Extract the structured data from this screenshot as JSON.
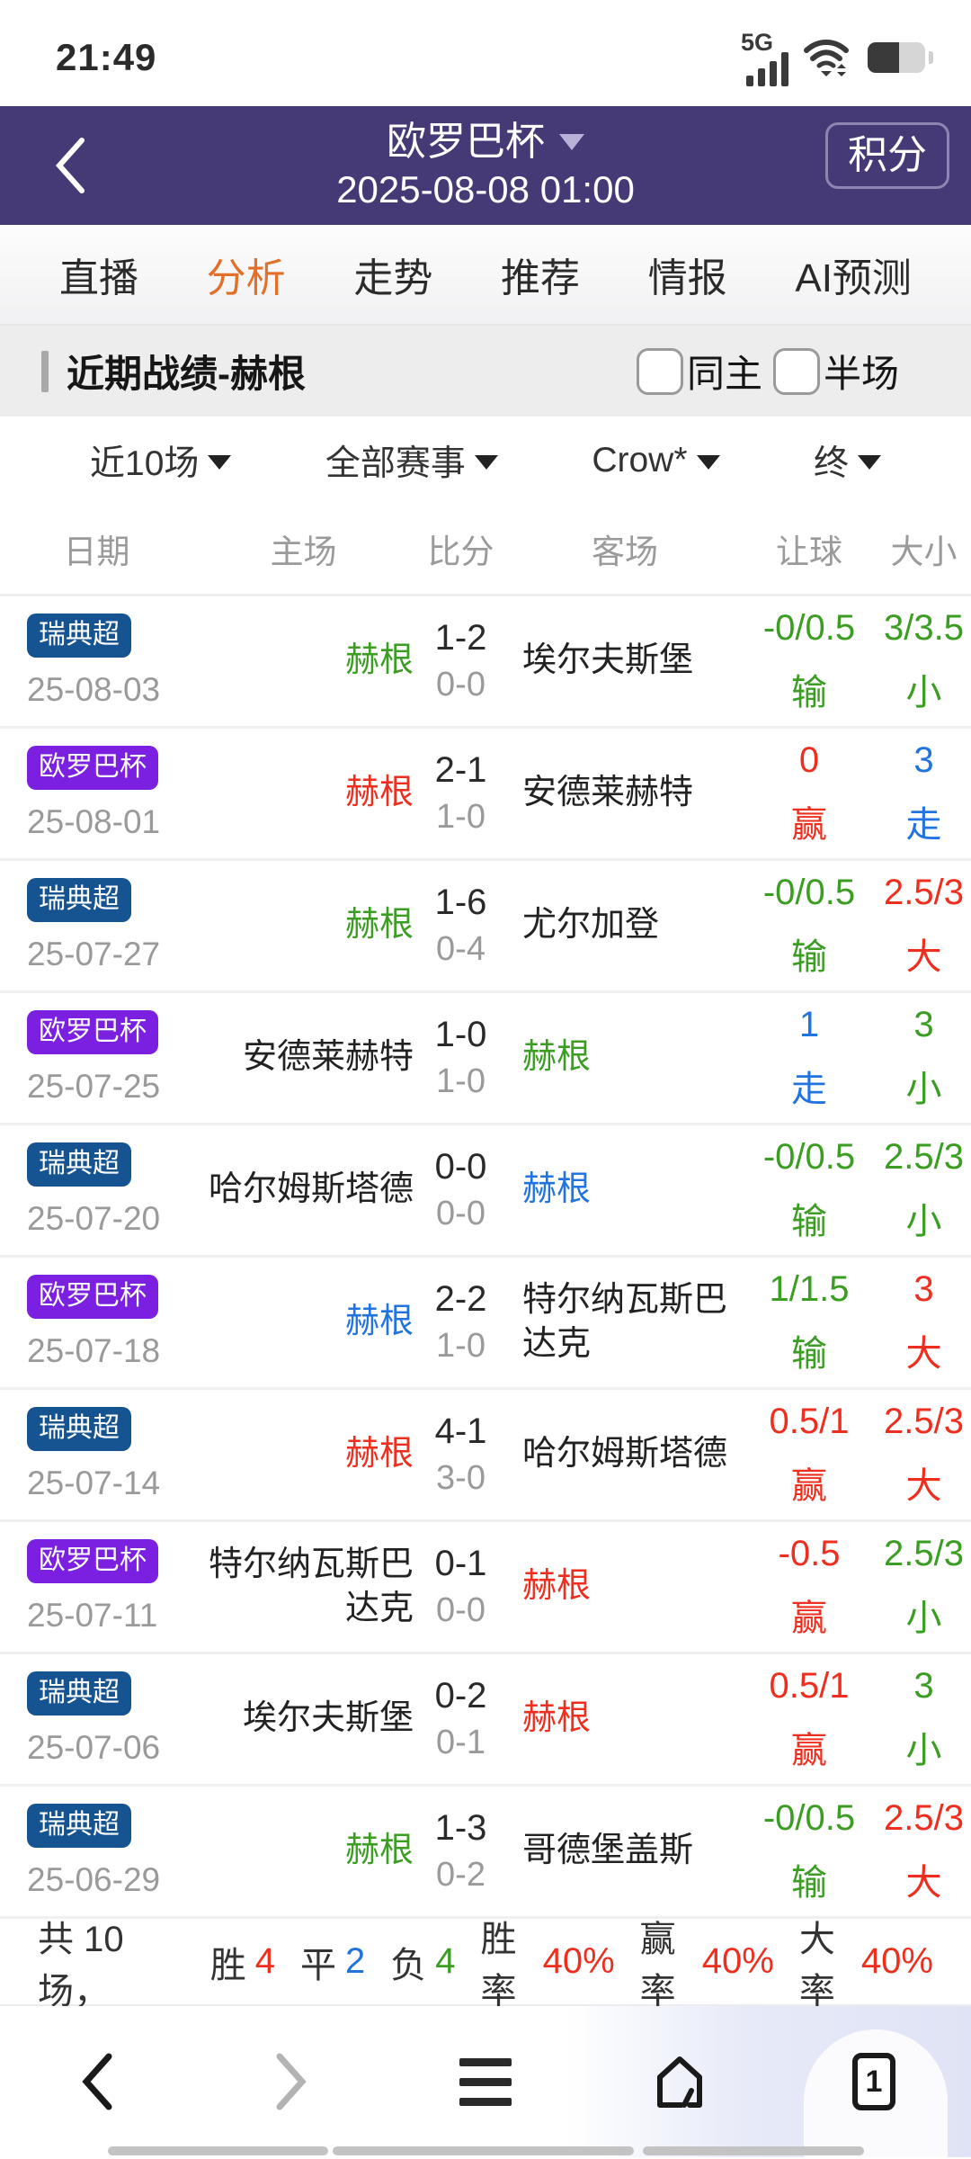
{
  "colors": {
    "header_purple": "#453A75",
    "active_tab_orange": "#E2702B",
    "win_red": "#EE2F1F",
    "lose_green": "#3B9E23",
    "draw_blue": "#2173E0",
    "badge_blue": "#155391",
    "badge_purple": "#7B1FE0"
  },
  "status_bar": {
    "time": "21:49",
    "network": "5G"
  },
  "header": {
    "title": "欧罗巴杯",
    "subtitle": "2025-08-08 01:00",
    "action_label": "积分"
  },
  "tabs": [
    {
      "label": "直播",
      "active": false
    },
    {
      "label": "分析",
      "active": true
    },
    {
      "label": "走势",
      "active": false
    },
    {
      "label": "推荐",
      "active": false
    },
    {
      "label": "情报",
      "active": false
    },
    {
      "label": "AI预测",
      "active": false
    }
  ],
  "section": {
    "title": "近期战绩-赫根",
    "checkboxes": [
      {
        "label": "同主",
        "checked": false
      },
      {
        "label": "半场",
        "checked": false
      }
    ]
  },
  "filters": [
    {
      "label": "近10场"
    },
    {
      "label": "全部赛事"
    },
    {
      "label": "Crow*"
    },
    {
      "label": "终"
    }
  ],
  "table": {
    "headers": [
      "日期",
      "主场",
      "比分",
      "客场",
      "让球",
      "大小"
    ],
    "rows": [
      {
        "league": "瑞典超",
        "league_color": "blue",
        "date": "25-08-03",
        "home": "赫根",
        "home_color": "green",
        "score": "1-2",
        "half_score": "0-0",
        "away": "埃尔夫斯堡",
        "away_color": "black",
        "handicap": "-0/0.5",
        "handicap_result": "输",
        "handicap_color": "green",
        "ou": "3/3.5",
        "ou_result": "小",
        "ou_color": "green"
      },
      {
        "league": "欧罗巴杯",
        "league_color": "purple",
        "date": "25-08-01",
        "home": "赫根",
        "home_color": "red",
        "score": "2-1",
        "half_score": "1-0",
        "away": "安德莱赫特",
        "away_color": "black",
        "handicap": "0",
        "handicap_result": "赢",
        "handicap_color": "red",
        "ou": "3",
        "ou_result": "走",
        "ou_color": "blue"
      },
      {
        "league": "瑞典超",
        "league_color": "blue",
        "date": "25-07-27",
        "home": "赫根",
        "home_color": "green",
        "score": "1-6",
        "half_score": "0-4",
        "away": "尤尔加登",
        "away_color": "black",
        "handicap": "-0/0.5",
        "handicap_result": "输",
        "handicap_color": "green",
        "ou": "2.5/3",
        "ou_result": "大",
        "ou_color": "red"
      },
      {
        "league": "欧罗巴杯",
        "league_color": "purple",
        "date": "25-07-25",
        "home": "安德莱赫特",
        "home_color": "black",
        "score": "1-0",
        "half_score": "1-0",
        "away": "赫根",
        "away_color": "green",
        "handicap": "1",
        "handicap_result": "走",
        "handicap_color": "blue",
        "ou": "3",
        "ou_result": "小",
        "ou_color": "green"
      },
      {
        "league": "瑞典超",
        "league_color": "blue",
        "date": "25-07-20",
        "home": "哈尔姆斯塔德",
        "home_color": "black",
        "score": "0-0",
        "half_score": "0-0",
        "away": "赫根",
        "away_color": "blue",
        "handicap": "-0/0.5",
        "handicap_result": "输",
        "handicap_color": "green",
        "ou": "2.5/3",
        "ou_result": "小",
        "ou_color": "green"
      },
      {
        "league": "欧罗巴杯",
        "league_color": "purple",
        "date": "25-07-18",
        "home": "赫根",
        "home_color": "blue",
        "score": "2-2",
        "half_score": "1-0",
        "away": "特尔纳瓦斯巴达克",
        "away_color": "black",
        "handicap": "1/1.5",
        "handicap_result": "输",
        "handicap_color": "green",
        "ou": "3",
        "ou_result": "大",
        "ou_color": "red"
      },
      {
        "league": "瑞典超",
        "league_color": "blue",
        "date": "25-07-14",
        "home": "赫根",
        "home_color": "red",
        "score": "4-1",
        "half_score": "3-0",
        "away": "哈尔姆斯塔德",
        "away_color": "black",
        "handicap": "0.5/1",
        "handicap_result": "赢",
        "handicap_color": "red",
        "ou": "2.5/3",
        "ou_result": "大",
        "ou_color": "red"
      },
      {
        "league": "欧罗巴杯",
        "league_color": "purple",
        "date": "25-07-11",
        "home": "特尔纳瓦斯巴达克",
        "home_color": "black",
        "score": "0-1",
        "half_score": "0-0",
        "away": "赫根",
        "away_color": "red",
        "handicap": "-0.5",
        "handicap_result": "赢",
        "handicap_color": "red",
        "ou": "2.5/3",
        "ou_result": "小",
        "ou_color": "green"
      },
      {
        "league": "瑞典超",
        "league_color": "blue",
        "date": "25-07-06",
        "home": "埃尔夫斯堡",
        "home_color": "black",
        "score": "0-2",
        "half_score": "0-1",
        "away": "赫根",
        "away_color": "red",
        "handicap": "0.5/1",
        "handicap_result": "赢",
        "handicap_color": "red",
        "ou": "3",
        "ou_result": "小",
        "ou_color": "green"
      },
      {
        "league": "瑞典超",
        "league_color": "blue",
        "date": "25-06-29",
        "home": "赫根",
        "home_color": "green",
        "score": "1-3",
        "half_score": "0-2",
        "away": "哥德堡盖斯",
        "away_color": "black",
        "handicap": "-0/0.5",
        "handicap_result": "输",
        "handicap_color": "green",
        "ou": "2.5/3",
        "ou_result": "大",
        "ou_color": "red"
      }
    ]
  },
  "summary": {
    "prefix": "共 10 场，",
    "items": [
      {
        "label": "胜",
        "value": "4",
        "color": "red"
      },
      {
        "label": "平",
        "value": "2",
        "color": "blue"
      },
      {
        "label": "负",
        "value": "4",
        "color": "green"
      },
      {
        "label": "胜率",
        "value": "40%",
        "color": "red"
      },
      {
        "label": "赢率",
        "value": "40%",
        "color": "red"
      },
      {
        "label": "大率",
        "value": "40%",
        "color": "red"
      }
    ]
  },
  "bottom_nav": {
    "tab_count": "1",
    "icons": [
      "back-icon",
      "forward-icon",
      "menu-icon",
      "home-icon",
      "tab-count-icon"
    ]
  }
}
